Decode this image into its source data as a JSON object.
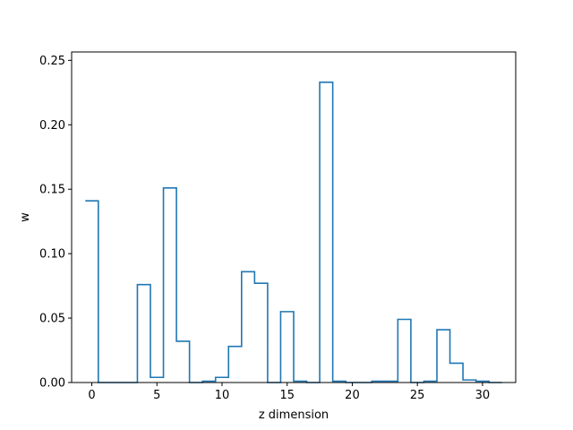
{
  "chart_data": {
    "type": "line",
    "style": "step",
    "xlabel": "z dimension",
    "ylabel": "w",
    "xlim": [
      -1.55,
      32.55
    ],
    "ylim": [
      0,
      0.2565
    ],
    "xticks": [
      0,
      5,
      10,
      15,
      20,
      25,
      30
    ],
    "xtick_labels": [
      "0",
      "5",
      "10",
      "15",
      "20",
      "25",
      "30"
    ],
    "yticks": [
      0.0,
      0.05,
      0.1,
      0.15,
      0.2,
      0.25
    ],
    "ytick_labels": [
      "0.00",
      "0.05",
      "0.10",
      "0.15",
      "0.20",
      "0.25"
    ],
    "grid": false,
    "line_color": "#1f77b4",
    "series": [
      {
        "x": [
          0,
          1,
          2,
          3,
          4,
          5,
          6,
          7,
          8,
          9,
          10,
          11,
          12,
          13,
          14,
          15,
          16,
          17,
          18,
          19,
          20,
          21,
          22,
          23,
          24,
          25,
          26,
          27,
          28,
          29,
          30,
          31
        ],
        "values": [
          0.141,
          0.0,
          0.0,
          0.0,
          0.076,
          0.004,
          0.151,
          0.032,
          0.0,
          0.001,
          0.004,
          0.028,
          0.086,
          0.077,
          0.0,
          0.055,
          0.001,
          0.0,
          0.233,
          0.001,
          0.0,
          0.0,
          0.001,
          0.001,
          0.049,
          0.0,
          0.001,
          0.041,
          0.015,
          0.002,
          0.001,
          0.0
        ]
      }
    ]
  }
}
